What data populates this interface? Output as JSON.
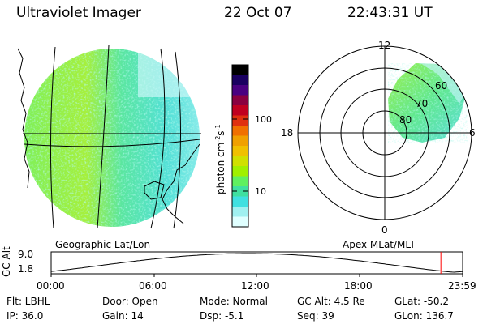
{
  "header": {
    "instrument": "Ultraviolet Imager",
    "date": "22 Oct 07",
    "time": "22:43:31 UT"
  },
  "colorbar": {
    "label": "photon cm",
    "label_sup1": "-2",
    "label_mid": "s",
    "label_sup2": "-1",
    "ticks": [
      "100",
      "10"
    ],
    "colors": [
      "#000000",
      "#1a0060",
      "#4a0080",
      "#8a0040",
      "#c00020",
      "#e03010",
      "#f07000",
      "#f0a000",
      "#f0c000",
      "#d0e000",
      "#a0f000",
      "#60f060",
      "#40e0a0",
      "#40e0e0",
      "#a0f0f0",
      "#e0ffff"
    ]
  },
  "geo_panel": {
    "label": "Geographic Lat/Lon"
  },
  "polar_panel": {
    "label": "Apex MLat/MLT",
    "mlt_labels": {
      "top": "12",
      "left": "18",
      "right": "6",
      "bottom": "0"
    },
    "lat_labels": [
      "60",
      "70",
      "80"
    ]
  },
  "altitude_strip": {
    "axis_label": "GC Alt",
    "y_ticks": [
      "9.0",
      "1.8"
    ],
    "x_ticks": [
      "00:00",
      "06:00",
      "12:00",
      "18:00",
      "23:59"
    ],
    "current_time_marker_hours": 22.73,
    "marker_color": "#ff0000"
  },
  "status": {
    "flt": "Flt: LBHL",
    "ip": "IP: 36.0",
    "door": "Door: Open",
    "gain": "Gain: 14",
    "mode": "Mode: Normal",
    "dsp": "Dsp:   -5.1",
    "gc_alt": "GC Alt: 4.5 Re",
    "seq": "Seq: 39",
    "glat": "GLat: -50.2",
    "glon": "GLon: 136.7"
  }
}
